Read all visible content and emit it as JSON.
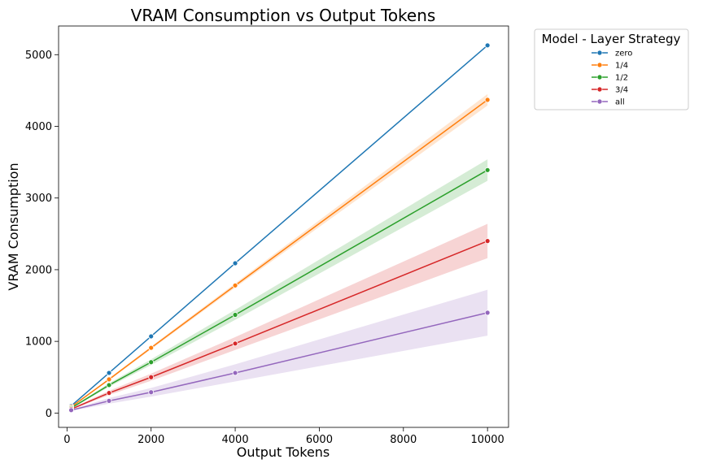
{
  "chart_data": {
    "type": "line",
    "title": "VRAM Consumption vs Output Tokens",
    "xlabel": "Output Tokens",
    "ylabel": "VRAM Consumption",
    "xlim": [
      -200,
      10500
    ],
    "ylim": [
      -200,
      5400
    ],
    "xticks": [
      0,
      2000,
      4000,
      6000,
      8000,
      10000
    ],
    "yticks": [
      0,
      1000,
      2000,
      3000,
      4000,
      5000
    ],
    "grid": false,
    "legend": {
      "title": "Model - Layer Strategy",
      "placement": "outside-top-right"
    },
    "x": [
      100,
      1000,
      2000,
      4000,
      10000
    ],
    "series": [
      {
        "name": "zero",
        "color": "#1f77b4",
        "values": [
          100,
          560,
          1070,
          2090,
          5130
        ],
        "band_low": [
          100,
          560,
          1070,
          2090,
          5130
        ],
        "band_high": [
          100,
          560,
          1070,
          2090,
          5130
        ]
      },
      {
        "name": "1/4",
        "color": "#ff7f0e",
        "values": [
          85,
          470,
          910,
          1780,
          4370
        ],
        "band_low": [
          80,
          455,
          890,
          1750,
          4290
        ],
        "band_high": [
          90,
          485,
          930,
          1810,
          4450
        ]
      },
      {
        "name": "1/2",
        "color": "#2ca02c",
        "values": [
          70,
          390,
          710,
          1370,
          3390
        ],
        "band_low": [
          62,
          365,
          670,
          1300,
          3240
        ],
        "band_high": [
          78,
          415,
          750,
          1440,
          3540
        ]
      },
      {
        "name": "3/4",
        "color": "#d62728",
        "values": [
          55,
          280,
          500,
          970,
          2400
        ],
        "band_low": [
          45,
          250,
          450,
          880,
          2160
        ],
        "band_high": [
          65,
          310,
          550,
          1060,
          2640
        ]
      },
      {
        "name": "all",
        "color": "#9467bd",
        "values": [
          40,
          170,
          290,
          560,
          1400
        ],
        "band_low": [
          30,
          130,
          230,
          440,
          1080
        ],
        "band_high": [
          50,
          210,
          350,
          680,
          1720
        ]
      }
    ]
  }
}
